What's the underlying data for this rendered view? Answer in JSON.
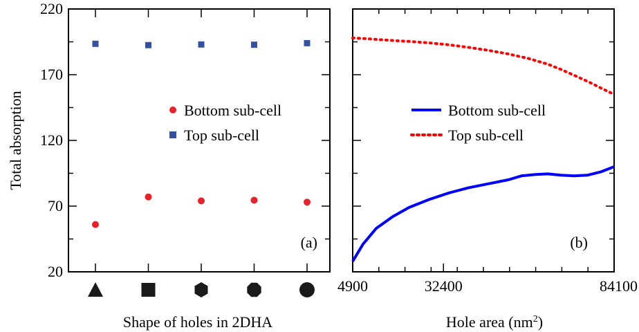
{
  "chart_data": [
    {
      "panel": "(a)",
      "type": "scatter",
      "ylabel": "Total absorption",
      "xlabel": "Shape of holes in 2DHA",
      "ylim": [
        20,
        220
      ],
      "yticks": [
        20,
        70,
        120,
        170,
        220
      ],
      "categories": [
        "triangle",
        "square",
        "hexagon",
        "octagon",
        "circle"
      ],
      "series": [
        {
          "name": "Bottom sub-cell",
          "marker": "circle",
          "color": "#e8212b",
          "values": [
            56,
            77,
            74,
            74.5,
            73
          ]
        },
        {
          "name": "Top sub-cell",
          "marker": "square",
          "color": "#3451a1",
          "values": [
            193.5,
            192.5,
            193,
            192.8,
            194
          ]
        }
      ],
      "legend": "center-right",
      "grid": false
    },
    {
      "panel": "(b)",
      "type": "line",
      "xlabel": "Hole area (nm",
      "xlabel_sup": "2",
      "xlabel_end": ")",
      "xlim": [
        4900,
        84100
      ],
      "xticks": [
        4900,
        32400,
        84100
      ],
      "ylim": [
        20,
        220
      ],
      "series": [
        {
          "name": "Bottom sub-cell",
          "style": "solid",
          "color": "#0000ff",
          "x": [
            4900,
            8000,
            12000,
            17000,
            22000,
            28000,
            34000,
            40000,
            46000,
            52000,
            56000,
            60000,
            64000,
            68000,
            72000,
            76000,
            80000,
            84100
          ],
          "y": [
            28,
            41,
            53,
            62,
            69,
            75,
            80,
            84,
            87,
            90,
            93,
            94,
            94.5,
            93.5,
            93,
            93.5,
            96,
            100
          ]
        },
        {
          "name": "Top sub-cell",
          "style": "dotted",
          "color": "#ff0000",
          "x": [
            4900,
            10000,
            16000,
            22000,
            28000,
            34000,
            40000,
            46000,
            52000,
            58000,
            64000,
            68000,
            72000,
            76000,
            80000,
            84100
          ],
          "y": [
            198,
            197.2,
            196.2,
            195.3,
            194.2,
            192.8,
            190.8,
            188.5,
            185.8,
            182.5,
            178,
            174,
            169.5,
            165,
            160,
            155
          ]
        }
      ],
      "legend": "center",
      "grid": false
    }
  ]
}
